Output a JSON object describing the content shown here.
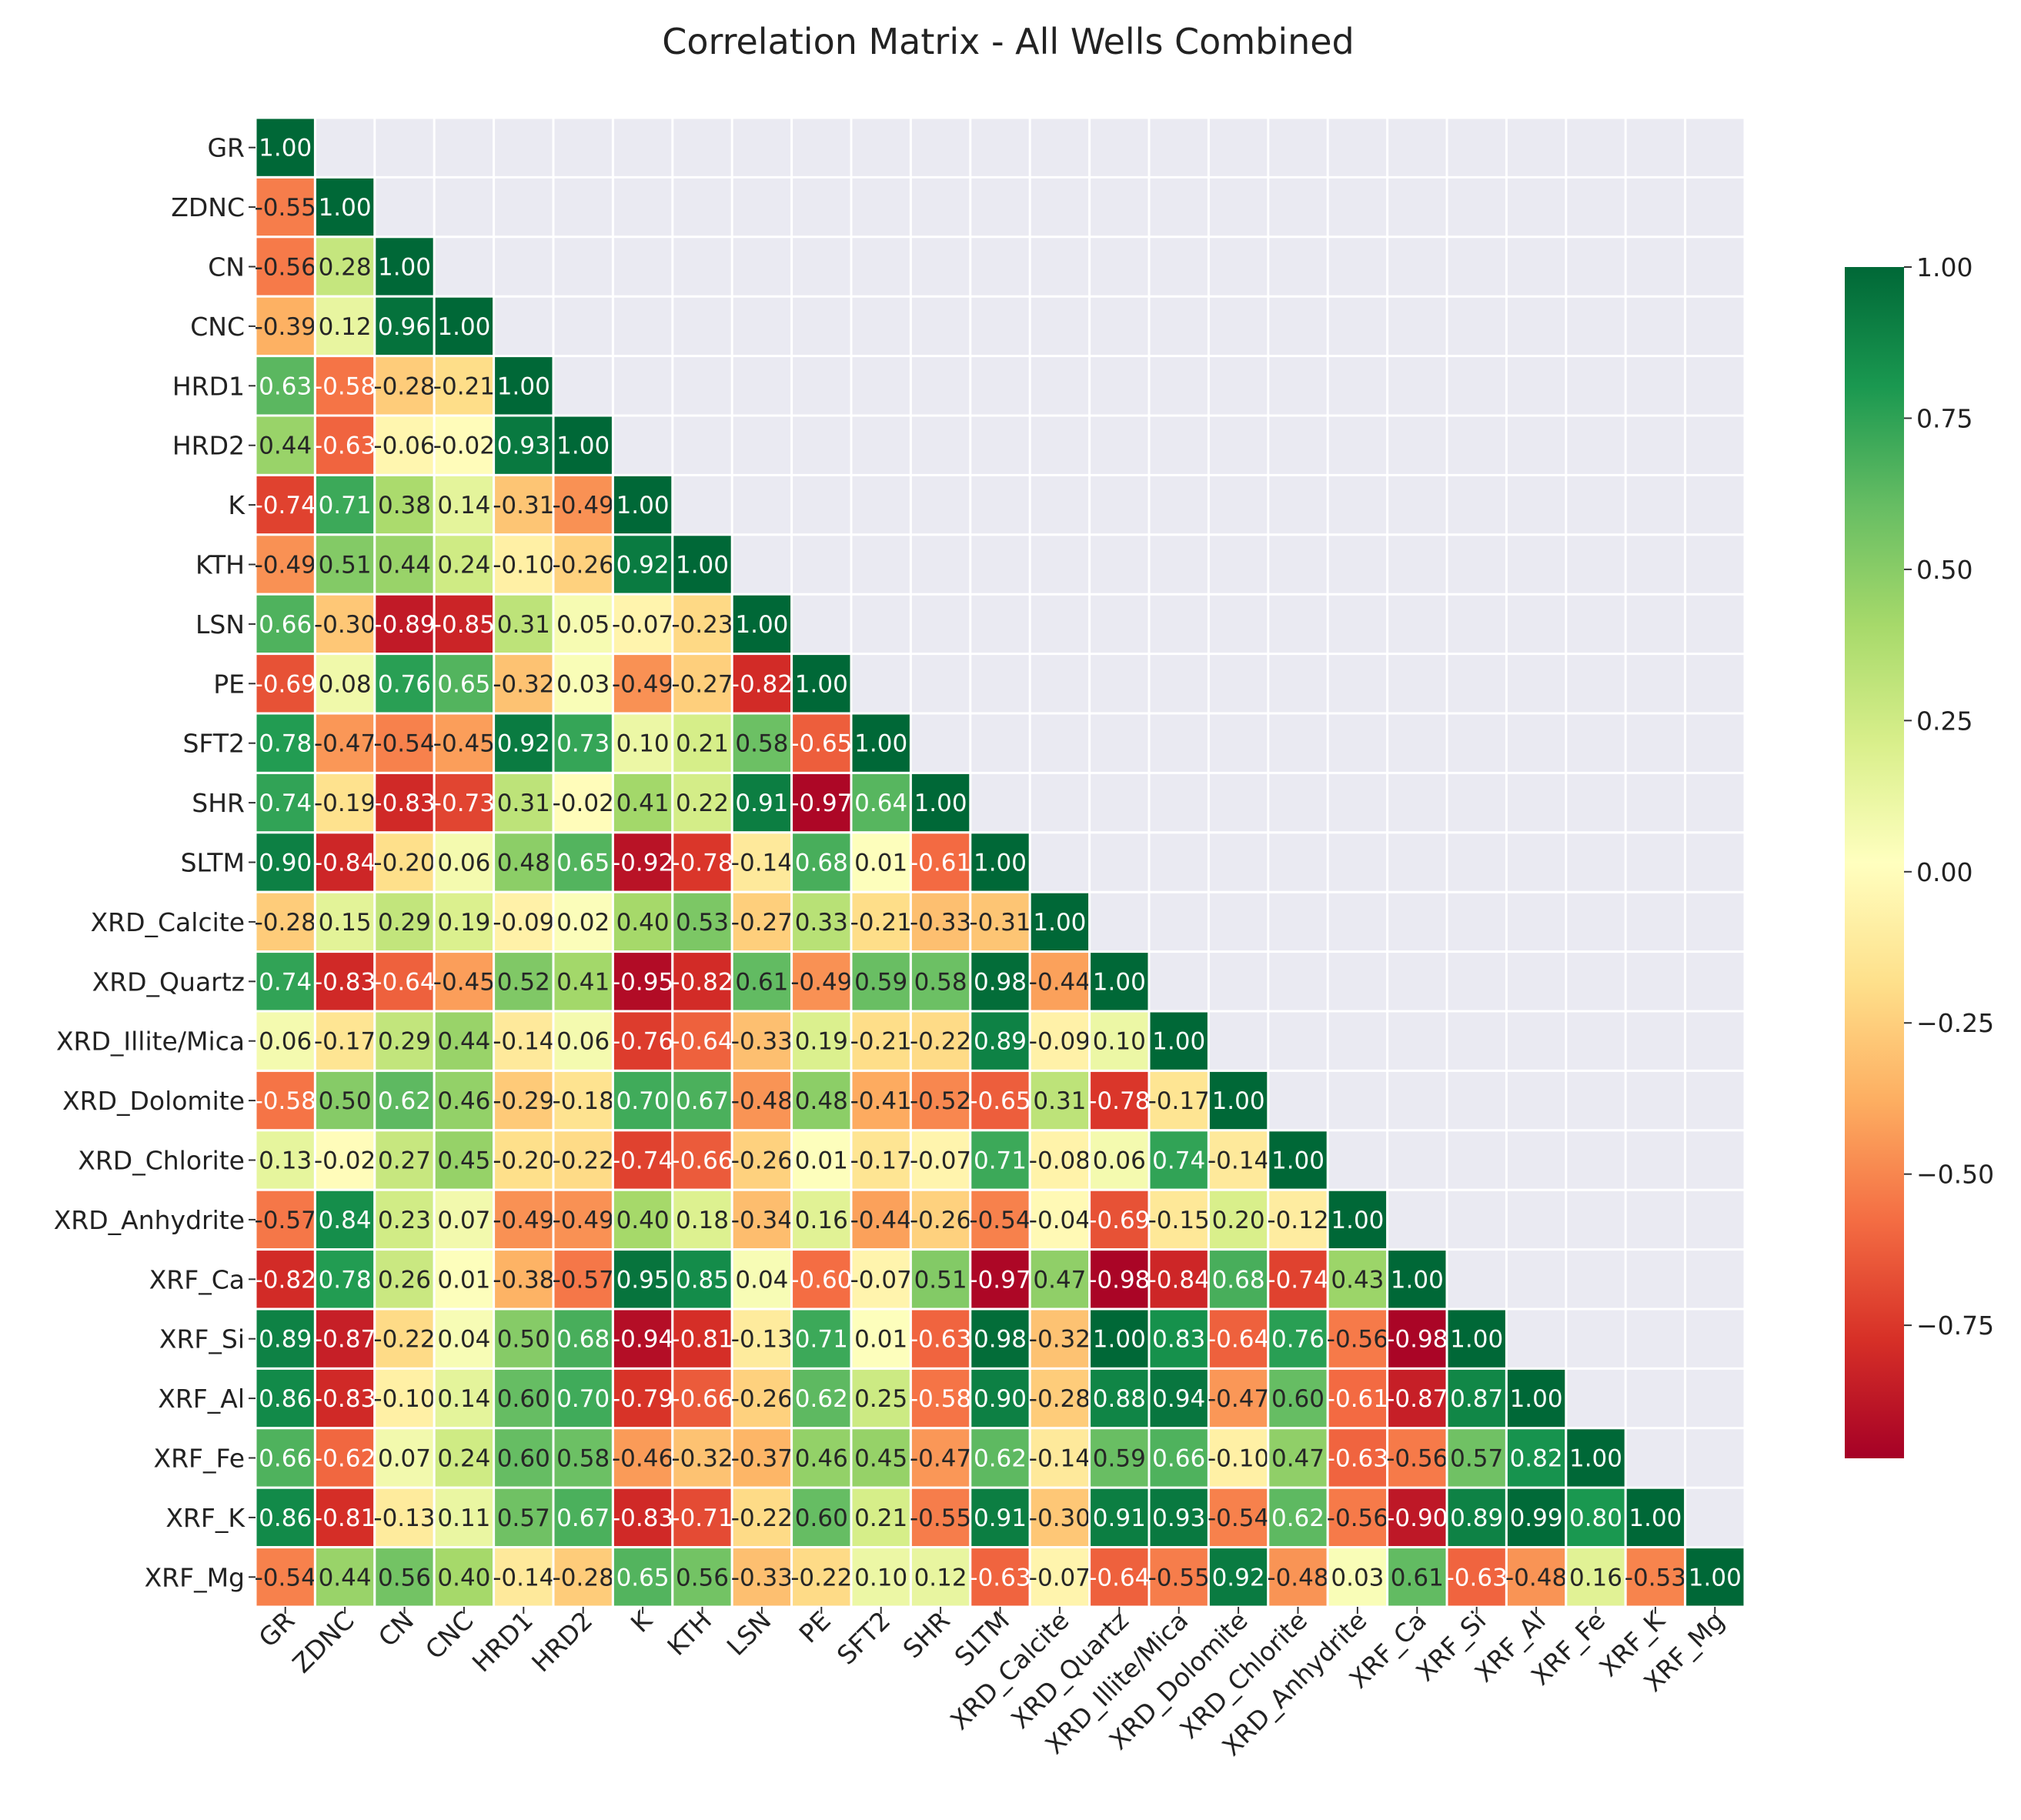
{
  "chart_data": {
    "type": "heatmap",
    "title": "Correlation Matrix - All Wells Combined",
    "xlabel": "",
    "ylabel": "",
    "variables": [
      "GR",
      "ZDNC",
      "CN",
      "CNC",
      "HRD1",
      "HRD2",
      "K",
      "KTH",
      "LSN",
      "PE",
      "SFT2",
      "SHR",
      "SLTM",
      "XRD_Calcite",
      "XRD_Quartz",
      "XRD_Illite/Mica",
      "XRD_Dolomite",
      "XRD_Chlorite",
      "XRD_Anhydrite",
      "XRF_Ca",
      "XRF_Si",
      "XRF_Al",
      "XRF_Fe",
      "XRF_K",
      "XRF_Mg"
    ],
    "lower_triangle": [
      [
        1.0
      ],
      [
        -0.55,
        1.0
      ],
      [
        -0.56,
        0.28,
        1.0
      ],
      [
        -0.39,
        0.12,
        0.96,
        1.0
      ],
      [
        0.63,
        -0.58,
        -0.28,
        -0.21,
        1.0
      ],
      [
        0.44,
        -0.63,
        -0.06,
        -0.02,
        0.93,
        1.0
      ],
      [
        -0.74,
        0.71,
        0.38,
        0.14,
        -0.31,
        -0.49,
        1.0
      ],
      [
        -0.49,
        0.51,
        0.44,
        0.24,
        -0.1,
        -0.26,
        0.92,
        1.0
      ],
      [
        0.66,
        -0.3,
        -0.89,
        -0.85,
        0.31,
        0.05,
        -0.07,
        -0.23,
        1.0
      ],
      [
        -0.69,
        0.08,
        0.76,
        0.65,
        -0.32,
        0.03,
        -0.49,
        -0.27,
        -0.82,
        1.0
      ],
      [
        0.78,
        -0.47,
        -0.54,
        -0.45,
        0.92,
        0.73,
        0.1,
        0.21,
        0.58,
        -0.65,
        1.0
      ],
      [
        0.74,
        -0.19,
        -0.83,
        -0.73,
        0.31,
        -0.02,
        0.41,
        0.22,
        0.91,
        -0.97,
        0.64,
        1.0
      ],
      [
        0.9,
        -0.84,
        -0.2,
        0.06,
        0.48,
        0.65,
        -0.92,
        -0.78,
        -0.14,
        0.68,
        0.01,
        -0.61,
        1.0
      ],
      [
        -0.28,
        0.15,
        0.29,
        0.19,
        -0.09,
        0.02,
        0.4,
        0.53,
        -0.27,
        0.33,
        -0.21,
        -0.33,
        -0.31,
        1.0
      ],
      [
        0.74,
        -0.83,
        -0.64,
        -0.45,
        0.52,
        0.41,
        -0.95,
        -0.82,
        0.61,
        -0.49,
        0.59,
        0.58,
        0.98,
        -0.44,
        1.0
      ],
      [
        0.06,
        -0.17,
        0.29,
        0.44,
        -0.14,
        0.06,
        -0.76,
        -0.64,
        -0.33,
        0.19,
        -0.21,
        -0.22,
        0.89,
        -0.09,
        0.1,
        1.0
      ],
      [
        -0.58,
        0.5,
        0.62,
        0.46,
        -0.29,
        -0.18,
        0.7,
        0.67,
        -0.48,
        0.48,
        -0.41,
        -0.52,
        -0.65,
        0.31,
        -0.78,
        -0.17,
        1.0
      ],
      [
        0.13,
        -0.02,
        0.27,
        0.45,
        -0.2,
        -0.22,
        -0.74,
        -0.66,
        -0.26,
        0.01,
        -0.17,
        -0.07,
        0.71,
        -0.08,
        0.06,
        0.74,
        -0.14,
        1.0
      ],
      [
        -0.57,
        0.84,
        0.23,
        0.07,
        -0.49,
        -0.49,
        0.4,
        0.18,
        -0.34,
        0.16,
        -0.44,
        -0.26,
        -0.54,
        -0.04,
        -0.69,
        -0.15,
        0.2,
        -0.12,
        1.0
      ],
      [
        -0.82,
        0.78,
        0.26,
        0.01,
        -0.38,
        -0.57,
        0.95,
        0.85,
        0.04,
        -0.6,
        -0.07,
        0.51,
        -0.97,
        0.47,
        -0.98,
        -0.84,
        0.68,
        -0.74,
        0.43,
        1.0
      ],
      [
        0.89,
        -0.87,
        -0.22,
        0.04,
        0.5,
        0.68,
        -0.94,
        -0.81,
        -0.13,
        0.71,
        0.01,
        -0.63,
        0.98,
        -0.32,
        1.0,
        0.83,
        -0.64,
        0.76,
        -0.56,
        -0.98,
        1.0
      ],
      [
        0.86,
        -0.83,
        -0.1,
        0.14,
        0.6,
        0.7,
        -0.79,
        -0.66,
        -0.26,
        0.62,
        0.25,
        -0.58,
        0.9,
        -0.28,
        0.88,
        0.94,
        -0.47,
        0.6,
        -0.61,
        -0.87,
        0.87,
        1.0
      ],
      [
        0.66,
        -0.62,
        0.07,
        0.24,
        0.6,
        0.58,
        -0.46,
        -0.32,
        -0.37,
        0.46,
        0.45,
        -0.47,
        0.62,
        -0.14,
        0.59,
        0.66,
        -0.1,
        0.47,
        -0.63,
        -0.56,
        0.57,
        0.82,
        1.0
      ],
      [
        0.86,
        -0.81,
        -0.13,
        0.11,
        0.57,
        0.67,
        -0.83,
        -0.71,
        -0.22,
        0.6,
        0.21,
        -0.55,
        0.91,
        -0.3,
        0.91,
        0.93,
        -0.54,
        0.62,
        -0.56,
        -0.9,
        0.89,
        0.99,
        0.8,
        1.0
      ],
      [
        -0.54,
        0.44,
        0.56,
        0.4,
        -0.14,
        -0.28,
        0.65,
        0.56,
        -0.33,
        -0.22,
        0.1,
        0.12,
        -0.63,
        -0.07,
        -0.64,
        -0.55,
        0.92,
        -0.48,
        0.03,
        0.61,
        -0.63,
        -0.48,
        0.16,
        -0.53,
        1.0
      ]
    ],
    "colormap": "RdYlGn",
    "vmin": -1.0,
    "vmax": 1.0,
    "colorbar_ticks": [
      "1.00",
      "0.75",
      "0.50",
      "0.25",
      "0.00",
      "−0.25",
      "−0.50",
      "−0.75"
    ],
    "grid": true,
    "legend": "colorbar-right"
  }
}
